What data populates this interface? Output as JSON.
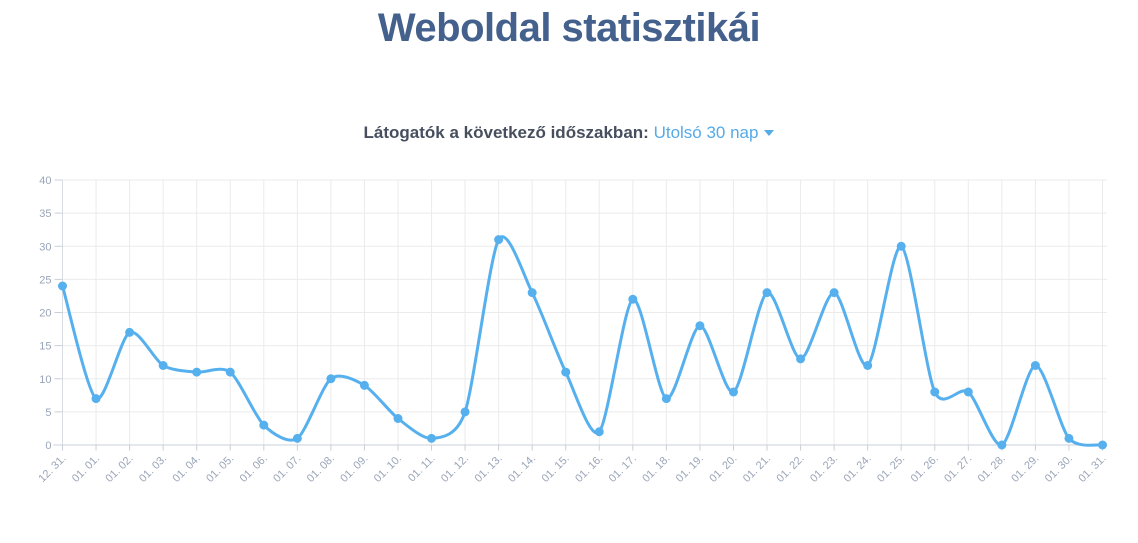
{
  "page": {
    "title": "Weboldal statisztikái"
  },
  "subtitle": {
    "label": "Látogatók a következő időszakban:",
    "period_value": "Utolsó 30 nap"
  },
  "colors": {
    "title": "#44608C",
    "subtitle": "#474F5E",
    "link": "#55AAE8",
    "line": "#57B0EE",
    "axis_label": "#9AA5B8",
    "grid": "#EBEBEB",
    "tick": "#C9CFD8",
    "axis": "#D9DDE3"
  },
  "chart_data": {
    "type": "line",
    "title": "Látogatók a következő időszakban: Utolsó 30 nap",
    "categories": [
      "12. 31.",
      "01. 01.",
      "01. 02.",
      "01. 03.",
      "01. 04.",
      "01. 05.",
      "01. 06.",
      "01. 07.",
      "01. 08.",
      "01. 09.",
      "01. 10.",
      "01. 11.",
      "01. 12.",
      "01. 13.",
      "01. 14.",
      "01. 15.",
      "01. 16.",
      "01. 17.",
      "01. 18.",
      "01. 19.",
      "01. 20.",
      "01. 21.",
      "01. 22.",
      "01. 23.",
      "01. 24.",
      "01. 25.",
      "01. 26.",
      "01. 27.",
      "01. 28.",
      "01. 29.",
      "01. 30.",
      "01. 31."
    ],
    "values": [
      24,
      7,
      17,
      12,
      11,
      11,
      3,
      1,
      10,
      9,
      4,
      1,
      5,
      31,
      23,
      11,
      2,
      22,
      7,
      18,
      8,
      23,
      13,
      23,
      12,
      30,
      8,
      8,
      0,
      12,
      1,
      0
    ],
    "xlabel": "",
    "ylabel": "",
    "ylim": [
      0,
      40
    ],
    "ytick_step": 5,
    "grid": true,
    "legend": false,
    "line_color": "#57B0EE",
    "point_style": "circle",
    "x_label_rotation": -45
  }
}
